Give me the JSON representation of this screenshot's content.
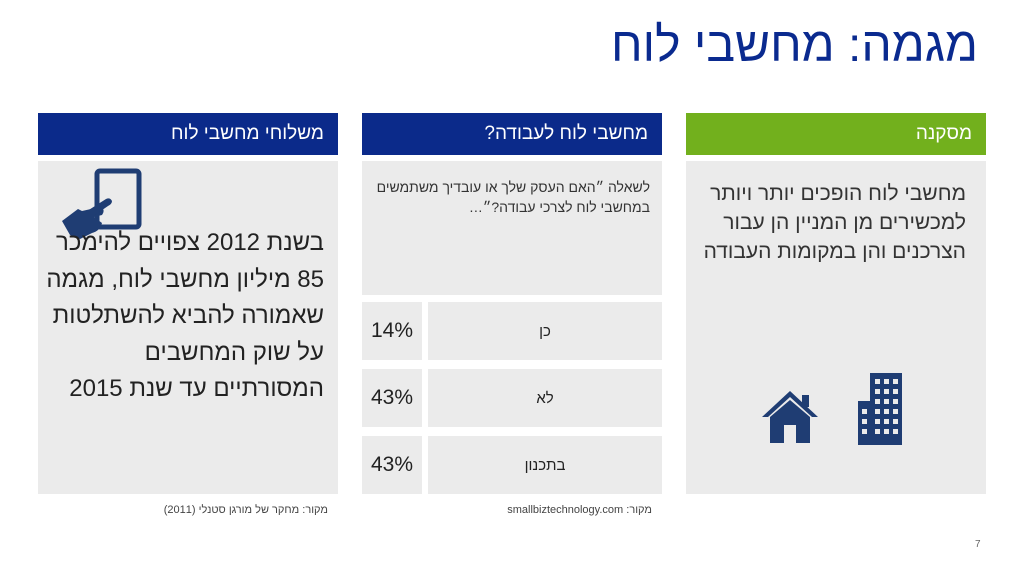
{
  "title": "מגמה: מחשבי לוח",
  "columns": {
    "shipments": {
      "header": "משלוחי מחשבי לוח",
      "body": "בשנת 2012 צפויים להימכר 85 מיליון מחשבי לוח, מגמה שאמורה להביא להשתלטות על שוק המחשבים המסורתיים עד שנת 2015",
      "icon": "tablet-touch-icon",
      "source": "מקור:  מחקר של מורגן סטנלי (2011)"
    },
    "survey": {
      "header": "מחשבי לוח לעבודה?",
      "question": "לשאלה ״האם העסק שלך או עובדיך משתמשים במחשבי לוח לצרכי עבודה?״…",
      "answers": [
        {
          "label": "כן",
          "percent": "14%"
        },
        {
          "label": "לא",
          "percent": "43%"
        },
        {
          "label": "בתכנון",
          "percent": "43%"
        }
      ],
      "source": "מקור:  smallbiztechnology.com"
    },
    "conclusion": {
      "header": "מסקנה",
      "body": "מחשבי לוח הופכים יותר ויותר למכשירים מן המניין הן עבור הצרכנים והן במקומות העבודה",
      "icons": [
        "house-icon",
        "office-building-icon"
      ]
    }
  },
  "colors": {
    "title": "#0a2a8f",
    "header_blue": "#0b2a8a",
    "header_green": "#72b01d",
    "panel": "#ebebeb",
    "icon": "#1f3d73"
  },
  "page_number": "7"
}
